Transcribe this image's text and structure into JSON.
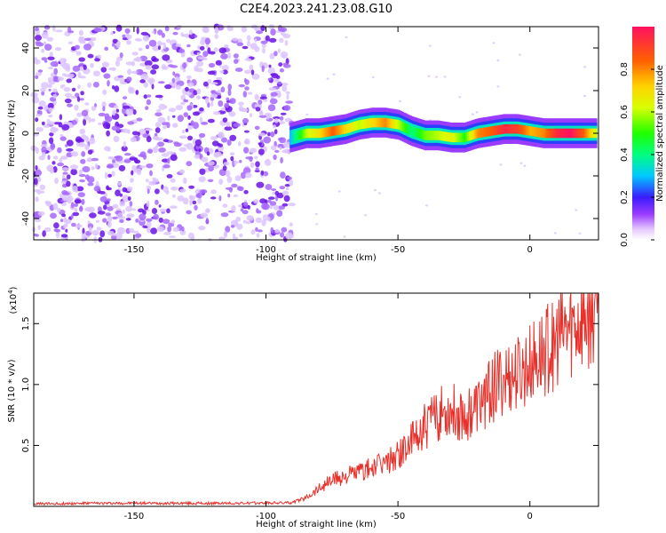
{
  "title": "C2E4.2023.241.23.08.G10",
  "colors": {
    "trace": "#e8302a",
    "noise": "#7a22ee",
    "frame": "#000000"
  },
  "chart_data": [
    {
      "type": "heatmap",
      "xlabel": "Height of straight line (km)",
      "ylabel": "Frequency (Hz)",
      "xlim": [
        -188,
        26
      ],
      "ylim": [
        -50,
        50
      ],
      "xticks": [
        -150,
        -100,
        -50,
        0
      ],
      "yticks": [
        -40,
        -20,
        0,
        20,
        40
      ],
      "noise_region_x": [
        -188,
        -90
      ],
      "ridge": {
        "x": [
          -91,
          -85,
          -80,
          -75,
          -70,
          -65,
          -60,
          -55,
          -50,
          -45,
          -40,
          -35,
          -30,
          -25,
          -20,
          -15,
          -10,
          -5,
          0,
          5,
          10,
          15,
          20,
          25
        ],
        "y": [
          -2,
          0,
          0,
          1,
          2,
          4,
          5,
          5,
          4,
          1,
          -1,
          -1,
          -2,
          -2,
          0,
          1,
          2,
          2,
          1,
          0,
          0,
          0,
          0,
          0
        ],
        "amplitude": [
          0.3,
          0.6,
          0.7,
          0.85,
          0.7,
          0.6,
          0.7,
          0.8,
          0.6,
          0.4,
          0.55,
          0.6,
          0.65,
          0.5,
          0.8,
          0.85,
          0.95,
          0.9,
          0.75,
          0.8,
          0.95,
          1.0,
          0.85,
          0.6
        ]
      }
    },
    {
      "type": "colorbar",
      "label": "Normalized spectral amplitude",
      "range": [
        0,
        1
      ],
      "ticks": [
        "0.0",
        "0.2",
        "0.4",
        "0.6",
        "0.8"
      ],
      "tick_values": [
        0,
        0.2,
        0.4,
        0.6,
        0.8
      ]
    },
    {
      "type": "line",
      "xlabel": "Height of straight line (km)",
      "ylabel": "SNR (10 * v/v)",
      "yscale_label": "(x10",
      "yscale_exp": "4",
      "yscale_close": ")",
      "xlim": [
        -188,
        26
      ],
      "ylim": [
        0,
        17500
      ],
      "xticks": [
        -150,
        -100,
        -50,
        0
      ],
      "yticks": [
        5000,
        10000,
        15000
      ],
      "ytick_labels": [
        "0.5",
        "1.0",
        "1.5"
      ],
      "series": [
        {
          "x": [
            -188,
            -170,
            -150,
            -130,
            -110,
            -95,
            -90,
            -85,
            -80,
            -75,
            -70,
            -65,
            -60,
            -55,
            -50,
            -45,
            -40,
            -35,
            -30,
            -25,
            -20,
            -15,
            -10,
            -5,
            0,
            5,
            10,
            15,
            20,
            25
          ],
          "y": [
            200,
            250,
            260,
            250,
            250,
            280,
            300,
            700,
            1500,
            2200,
            2500,
            2800,
            3100,
            3500,
            4200,
            5200,
            6500,
            7500,
            8000,
            7500,
            8200,
            9500,
            10500,
            10800,
            11500,
            12500,
            13500,
            14500,
            15500,
            16500
          ]
        }
      ]
    }
  ]
}
